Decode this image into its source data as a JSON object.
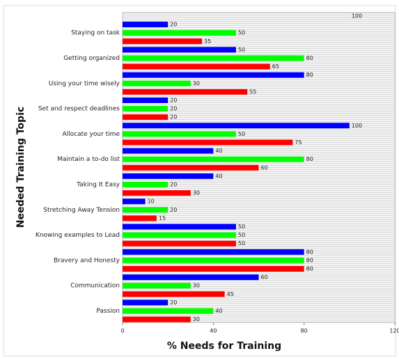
{
  "chart_data": {
    "type": "bar",
    "orientation": "horizontal",
    "x_label": "% Needs for Training",
    "y_label": "Needed Training Topic",
    "categories": [
      null,
      "Staying on task",
      "Getting organized",
      "Using your time wisely",
      "Set and respect deadlines",
      "Allocate your time",
      "Maintain a to-do list",
      "Taking It Easy",
      "Stretching Away Tension",
      "Knowing examples to Lead",
      "Bravery and Honesty",
      "Communication",
      "Passion"
    ],
    "series": [
      {
        "color": "#0000ff",
        "values": [
          null,
          20,
          50,
          80,
          20,
          100,
          40,
          40,
          10,
          50,
          80,
          60,
          20
        ]
      },
      {
        "color": "#00ff00",
        "values": [
          null,
          50,
          80,
          30,
          20,
          50,
          80,
          20,
          20,
          50,
          80,
          30,
          40
        ]
      },
      {
        "color": "#ff0000",
        "values": [
          100,
          35,
          65,
          55,
          20,
          75,
          60,
          30,
          15,
          50,
          80,
          45,
          30
        ]
      }
    ],
    "xlim": [
      0,
      120
    ],
    "xticks": [
      0,
      40,
      80,
      120
    ],
    "grid": true
  }
}
